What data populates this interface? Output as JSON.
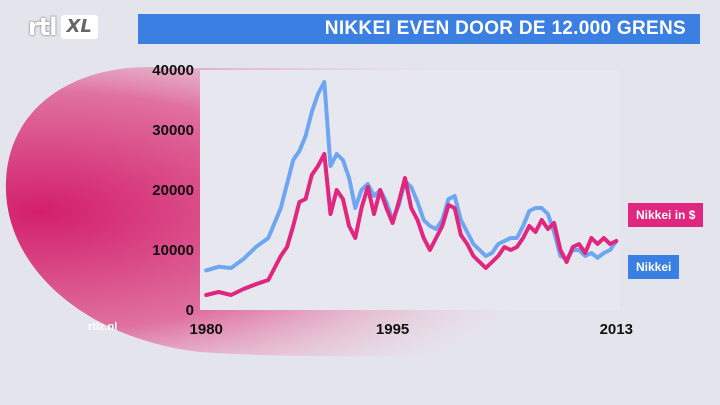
{
  "brand": {
    "logo_main": "rtl",
    "logo_sub": "XL",
    "website": "rtlz.nl"
  },
  "title": "NIKKEI EVEN DOOR DE 12.000 GRENS",
  "colors": {
    "title_bar": "#3c7fe3",
    "nikkei_usd": "#e0267e",
    "nikkei": "#6fa6f2",
    "plot_bg": "#e7e7ef",
    "swoosh": "#d63a78"
  },
  "chart_data": {
    "type": "line",
    "title": "NIKKEI EVEN DOOR DE 12.000 GRENS",
    "xlabel": "",
    "ylabel": "",
    "xlim": [
      1979.5,
      2013.3
    ],
    "ylim": [
      0,
      40000
    ],
    "x_ticks": [
      1980,
      1995,
      2013
    ],
    "y_ticks": [
      0,
      10000,
      20000,
      30000,
      40000
    ],
    "grid": false,
    "legend": "end-of-line labels",
    "series": [
      {
        "name": "Nikkei in $",
        "color": "#e0267e",
        "x": [
          1980,
          1981,
          1982,
          1983,
          1984,
          1985,
          1986,
          1986.5,
          1987,
          1987.5,
          1988,
          1988.5,
          1989,
          1989.5,
          1990,
          1990.5,
          1991,
          1991.5,
          1992,
          1992.5,
          1993,
          1993.5,
          1994,
          1994.5,
          1995,
          1995.5,
          1996,
          1996.5,
          1997,
          1997.5,
          1998,
          1998.5,
          1999,
          1999.5,
          2000,
          2000.5,
          2001,
          2001.5,
          2002,
          2002.5,
          2003,
          2003.5,
          2004,
          2004.5,
          2005,
          2005.5,
          2006,
          2006.5,
          2007,
          2007.5,
          2008,
          2008.5,
          2009,
          2009.5,
          2010,
          2010.5,
          2011,
          2011.5,
          2012,
          2012.5,
          2013
        ],
        "y": [
          2500,
          3000,
          2500,
          3500,
          4300,
          5000,
          9000,
          10500,
          14000,
          18000,
          18500,
          22500,
          24000,
          26000,
          16000,
          20000,
          18500,
          14000,
          12000,
          17000,
          20500,
          16000,
          20000,
          17000,
          14500,
          18000,
          22000,
          17000,
          15000,
          12000,
          10000,
          12000,
          14000,
          17500,
          17000,
          12500,
          11000,
          9000,
          8000,
          7000,
          8000,
          9000,
          10500,
          10000,
          10500,
          12000,
          14000,
          13000,
          15000,
          13500,
          14500,
          10000,
          8000,
          10500,
          11000,
          9500,
          12000,
          11000,
          12000,
          11000,
          11500
        ]
      },
      {
        "name": "Nikkei",
        "color": "#6fa6f2",
        "x": [
          1980,
          1981,
          1982,
          1983,
          1984,
          1985,
          1986,
          1986.5,
          1987,
          1987.5,
          1988,
          1988.5,
          1989,
          1989.5,
          1990,
          1990.5,
          1991,
          1991.5,
          1992,
          1992.5,
          1993,
          1993.5,
          1994,
          1994.5,
          1995,
          1995.5,
          1996,
          1996.5,
          1997,
          1997.5,
          1998,
          1998.5,
          1999,
          1999.5,
          2000,
          2000.5,
          2001,
          2001.5,
          2002,
          2002.5,
          2003,
          2003.5,
          2004,
          2004.5,
          2005,
          2005.5,
          2006,
          2006.5,
          2007,
          2007.5,
          2008,
          2008.5,
          2009,
          2009.5,
          2010,
          2010.5,
          2011,
          2011.5,
          2012,
          2012.5,
          2013
        ],
        "y": [
          6600,
          7200,
          7000,
          8500,
          10500,
          12000,
          17000,
          21000,
          25000,
          26500,
          29000,
          33000,
          36000,
          38000,
          24000,
          26000,
          25000,
          22000,
          17000,
          20000,
          21000,
          19000,
          20000,
          18000,
          15000,
          17500,
          21500,
          20500,
          18000,
          15000,
          14000,
          13500,
          15000,
          18500,
          19000,
          15000,
          13000,
          11000,
          10000,
          9000,
          9500,
          11000,
          11500,
          12000,
          12000,
          14000,
          16500,
          17000,
          17000,
          16000,
          13000,
          9000,
          8500,
          10000,
          10000,
          9000,
          9500,
          8700,
          9500,
          10000,
          11500
        ]
      }
    ]
  }
}
